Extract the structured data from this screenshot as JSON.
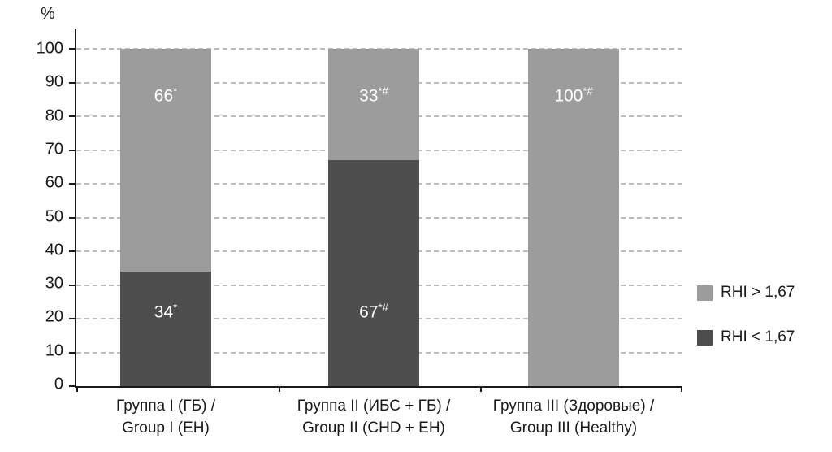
{
  "chart_data": {
    "type": "stacked-bar",
    "title": "",
    "ylabel": "%",
    "xlabel": "",
    "ylim": [
      0,
      100
    ],
    "yticks": [
      0,
      10,
      20,
      30,
      40,
      50,
      60,
      70,
      80,
      90,
      100
    ],
    "grid": "dashed-horizontal",
    "legend_position": "right",
    "colors": {
      "light": "#9c9c9c",
      "dark": "#4d4d4d",
      "grid": "#bcbcbc",
      "axis": "#1a1a1a",
      "bar_label": "#ffffff"
    },
    "legend": [
      {
        "label": "RHI > 1,67",
        "color_key": "light"
      },
      {
        "label": "RHI < 1,67",
        "color_key": "dark"
      }
    ],
    "categories": [
      {
        "line1": "Группа I (ГБ) /",
        "line2": "Group I (EH)"
      },
      {
        "line1": "Группа II (ИБС + ГБ) /",
        "line2": "Group II (CHD + EH)"
      },
      {
        "line1": "Группа III (Здоровые) /",
        "line2": "Group III (Healthy)"
      }
    ],
    "series": [
      {
        "name": "RHI > 1,67",
        "values": [
          66,
          33,
          100
        ]
      },
      {
        "name": "RHI < 1,67",
        "values": [
          34,
          67,
          0
        ]
      }
    ],
    "bars": [
      {
        "segments": [
          {
            "series": "RHI < 1,67",
            "value": 34,
            "label": "34",
            "marker": "*",
            "color_key": "dark",
            "label_at_pct": 22
          },
          {
            "series": "RHI > 1,67",
            "value": 66,
            "label": "66",
            "marker": "*",
            "color_key": "light",
            "label_at_pct": 86
          }
        ]
      },
      {
        "segments": [
          {
            "series": "RHI < 1,67",
            "value": 67,
            "label": "67",
            "marker": "*#",
            "color_key": "dark",
            "label_at_pct": 22
          },
          {
            "series": "RHI > 1,67",
            "value": 33,
            "label": "33",
            "marker": "*#",
            "color_key": "light",
            "label_at_pct": 86
          }
        ]
      },
      {
        "segments": [
          {
            "series": "RHI < 1,67",
            "value": 0,
            "label": "0",
            "marker": "*#",
            "color_key": "dark",
            "label_at_pct": 6
          },
          {
            "series": "RHI > 1,67",
            "value": 100,
            "label": "100",
            "marker": "*#",
            "color_key": "light",
            "label_at_pct": 86
          }
        ]
      }
    ]
  }
}
